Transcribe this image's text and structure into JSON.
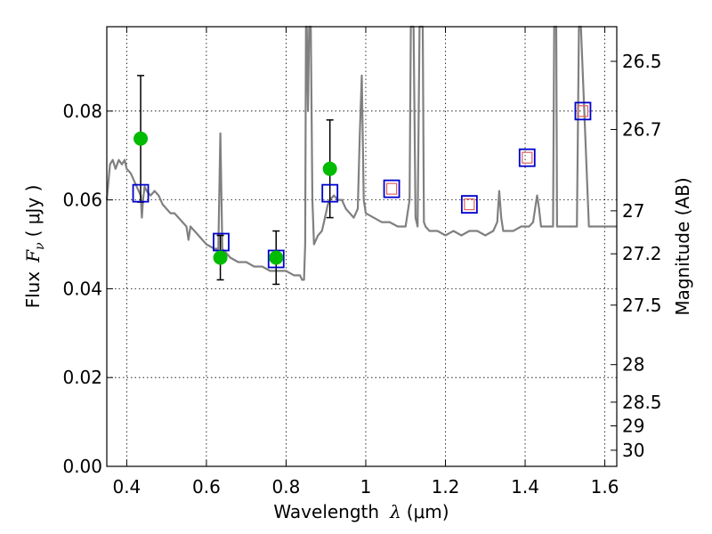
{
  "chart_data": {
    "type": "line",
    "xlabel_text": "Wavelength",
    "xlabel_symbol": "λ",
    "xlabel_unit": "(μm)",
    "ylabel_text": "Flux",
    "ylabel_symbol": "F",
    "ylabel_subscript": "ν",
    "ylabel_unit": "( μJy )",
    "y2label": "Magnitude (AB)",
    "xlim": [
      0.35,
      1.63
    ],
    "ylim": [
      0.0,
      0.099
    ],
    "grid": true,
    "x_ticks": [
      0.4,
      0.6,
      0.8,
      1.0,
      1.2,
      1.4,
      1.6
    ],
    "x_tick_labels": [
      "0.4",
      "0.6",
      "0.8",
      "1",
      "1.2",
      "1.4",
      "1.6"
    ],
    "y_ticks": [
      0.0,
      0.02,
      0.04,
      0.06,
      0.08
    ],
    "y_tick_labels": [
      "0.00",
      "0.02",
      "0.04",
      "0.06",
      "0.08"
    ],
    "mag_ticks": [
      {
        "label": "26.5",
        "mag": 26.5
      },
      {
        "label": "26.7",
        "mag": 26.7
      },
      {
        "label": "27",
        "mag": 27.0
      },
      {
        "label": "27.2",
        "mag": 27.2
      },
      {
        "label": "27.5",
        "mag": 27.5
      },
      {
        "label": "28",
        "mag": 28.0
      },
      {
        "label": "28.5",
        "mag": 28.5
      },
      {
        "label": "29",
        "mag": 29.0
      },
      {
        "label": "30",
        "mag": 30.0
      }
    ],
    "series": [
      {
        "kind": "model-spectrum",
        "color": "#808080",
        "x": [
          0.35,
          0.358,
          0.365,
          0.372,
          0.38,
          0.388,
          0.395,
          0.4,
          0.41,
          0.42,
          0.43,
          0.435,
          0.438,
          0.441,
          0.445,
          0.45,
          0.46,
          0.47,
          0.48,
          0.49,
          0.5,
          0.51,
          0.52,
          0.53,
          0.54,
          0.55,
          0.555,
          0.56,
          0.57,
          0.58,
          0.59,
          0.6,
          0.62,
          0.63,
          0.635,
          0.64,
          0.65,
          0.66,
          0.68,
          0.7,
          0.72,
          0.74,
          0.76,
          0.78,
          0.8,
          0.82,
          0.835,
          0.84,
          0.845,
          0.848,
          0.85,
          0.852,
          0.855,
          0.858,
          0.862,
          0.866,
          0.87,
          0.88,
          0.89,
          0.895,
          0.9,
          0.905,
          0.91,
          0.92,
          0.93,
          0.94,
          0.95,
          0.96,
          0.97,
          0.98,
          0.985,
          0.99,
          0.995,
          1.0,
          1.02,
          1.04,
          1.06,
          1.08,
          1.1,
          1.11,
          1.113,
          1.116,
          1.12,
          1.125,
          1.13,
          1.135,
          1.14,
          1.143,
          1.146,
          1.15,
          1.16,
          1.18,
          1.2,
          1.22,
          1.24,
          1.26,
          1.28,
          1.3,
          1.32,
          1.33,
          1.335,
          1.34,
          1.345,
          1.35,
          1.37,
          1.39,
          1.41,
          1.42,
          1.425,
          1.43,
          1.435,
          1.44,
          1.46,
          1.47,
          1.473,
          1.476,
          1.478,
          1.48,
          1.5,
          1.52,
          1.53,
          1.535,
          1.54,
          1.56,
          1.58,
          1.6,
          1.62,
          1.63
        ],
        "y": [
          0.06,
          0.068,
          0.069,
          0.067,
          0.069,
          0.068,
          0.069,
          0.067,
          0.066,
          0.064,
          0.062,
          0.061,
          0.056,
          0.06,
          0.063,
          0.062,
          0.061,
          0.062,
          0.061,
          0.059,
          0.058,
          0.057,
          0.057,
          0.056,
          0.055,
          0.054,
          0.051,
          0.054,
          0.053,
          0.052,
          0.051,
          0.05,
          0.049,
          0.049,
          0.075,
          0.049,
          0.048,
          0.047,
          0.046,
          0.046,
          0.045,
          0.045,
          0.044,
          0.044,
          0.044,
          0.043,
          0.043,
          0.042,
          0.042,
          0.05,
          0.099,
          0.099,
          0.08,
          0.099,
          0.099,
          0.06,
          0.05,
          0.052,
          0.053,
          0.055,
          0.057,
          0.059,
          0.06,
          0.061,
          0.06,
          0.06,
          0.058,
          0.057,
          0.056,
          0.058,
          0.075,
          0.088,
          0.06,
          0.057,
          0.056,
          0.055,
          0.055,
          0.054,
          0.054,
          0.06,
          0.099,
          0.099,
          0.099,
          0.056,
          0.054,
          0.099,
          0.099,
          0.099,
          0.055,
          0.054,
          0.053,
          0.053,
          0.052,
          0.053,
          0.052,
          0.053,
          0.053,
          0.052,
          0.053,
          0.055,
          0.062,
          0.056,
          0.053,
          0.053,
          0.053,
          0.054,
          0.054,
          0.055,
          0.058,
          0.061,
          0.058,
          0.054,
          0.054,
          0.054,
          0.099,
          0.099,
          0.099,
          0.054,
          0.054,
          0.054,
          0.054,
          0.099,
          0.099,
          0.054,
          0.054,
          0.054,
          0.054,
          0.054
        ]
      },
      {
        "kind": "observed-flux",
        "marker": "circle",
        "color": "#00bb00",
        "points": [
          {
            "x": 0.435,
            "y": 0.0738,
            "yerr_low": 0.0595,
            "yerr_high": 0.088
          },
          {
            "x": 0.635,
            "y": 0.047,
            "yerr_low": 0.042,
            "yerr_high": 0.052
          },
          {
            "x": 0.775,
            "y": 0.047,
            "yerr_low": 0.041,
            "yerr_high": 0.053
          },
          {
            "x": 0.91,
            "y": 0.067,
            "yerr_low": 0.056,
            "yerr_high": 0.078
          }
        ]
      },
      {
        "kind": "model-photometry",
        "marker": "square",
        "color": "#0000cc",
        "points": [
          {
            "x": 0.435,
            "y": 0.0615
          },
          {
            "x": 0.637,
            "y": 0.0505
          },
          {
            "x": 0.775,
            "y": 0.0467
          },
          {
            "x": 0.91,
            "y": 0.0615
          },
          {
            "x": 1.065,
            "y": 0.0625
          },
          {
            "x": 1.26,
            "y": 0.059
          },
          {
            "x": 1.405,
            "y": 0.0695
          },
          {
            "x": 1.545,
            "y": 0.08
          }
        ]
      },
      {
        "kind": "model-photometry-nir",
        "marker": "small-square",
        "color": "#e06060",
        "points": [
          {
            "x": 1.065,
            "y": 0.0625
          },
          {
            "x": 1.26,
            "y": 0.059
          },
          {
            "x": 1.405,
            "y": 0.0695
          },
          {
            "x": 1.545,
            "y": 0.08
          }
        ]
      }
    ]
  }
}
